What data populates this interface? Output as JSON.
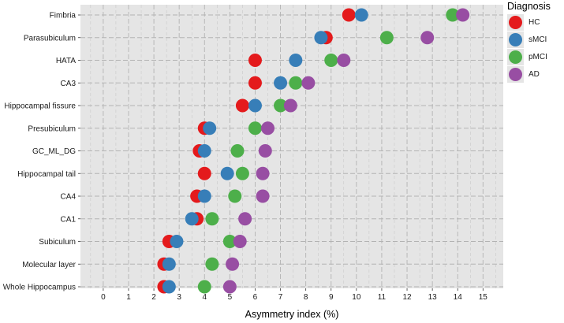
{
  "chart_data": {
    "type": "scatter",
    "title": "",
    "xlabel": "Asymmetry index (%)",
    "ylabel": "",
    "xlim": [
      -0.9,
      15.8
    ],
    "xticks": [
      0,
      1,
      2,
      3,
      4,
      5,
      6,
      7,
      8,
      9,
      10,
      11,
      12,
      13,
      14,
      15
    ],
    "grid": true,
    "legend_position": "top-right",
    "legend_title": "Diagnosis",
    "categories": [
      "Fimbria",
      "Parasubiculum",
      "HATA",
      "CA3",
      "Hippocampal fissure",
      "Presubiculum",
      "GC_ML_DG",
      "Hippocampal tail",
      "CA4",
      "CA1",
      "Subiculum",
      "Molecular layer",
      "Whole Hippocampus"
    ],
    "series": [
      {
        "name": "HC",
        "color": "#e41a1c",
        "values": [
          9.7,
          8.8,
          6.0,
          6.0,
          5.5,
          4.0,
          3.8,
          4.0,
          3.7,
          3.7,
          2.6,
          2.4,
          2.4
        ]
      },
      {
        "name": "sMCI",
        "color": "#377eb8",
        "values": [
          10.2,
          8.6,
          7.6,
          7.0,
          6.0,
          4.2,
          4.0,
          4.9,
          4.0,
          3.5,
          2.9,
          2.6,
          2.6
        ]
      },
      {
        "name": "pMCI",
        "color": "#4daf4a",
        "values": [
          13.8,
          11.2,
          9.0,
          7.6,
          7.0,
          6.0,
          5.3,
          5.5,
          5.2,
          4.3,
          5.0,
          4.3,
          4.0
        ]
      },
      {
        "name": "AD",
        "color": "#984ea3",
        "values": [
          14.2,
          12.8,
          9.5,
          8.1,
          7.4,
          6.5,
          6.4,
          6.3,
          6.3,
          5.6,
          5.4,
          5.1,
          5.0
        ]
      }
    ]
  }
}
